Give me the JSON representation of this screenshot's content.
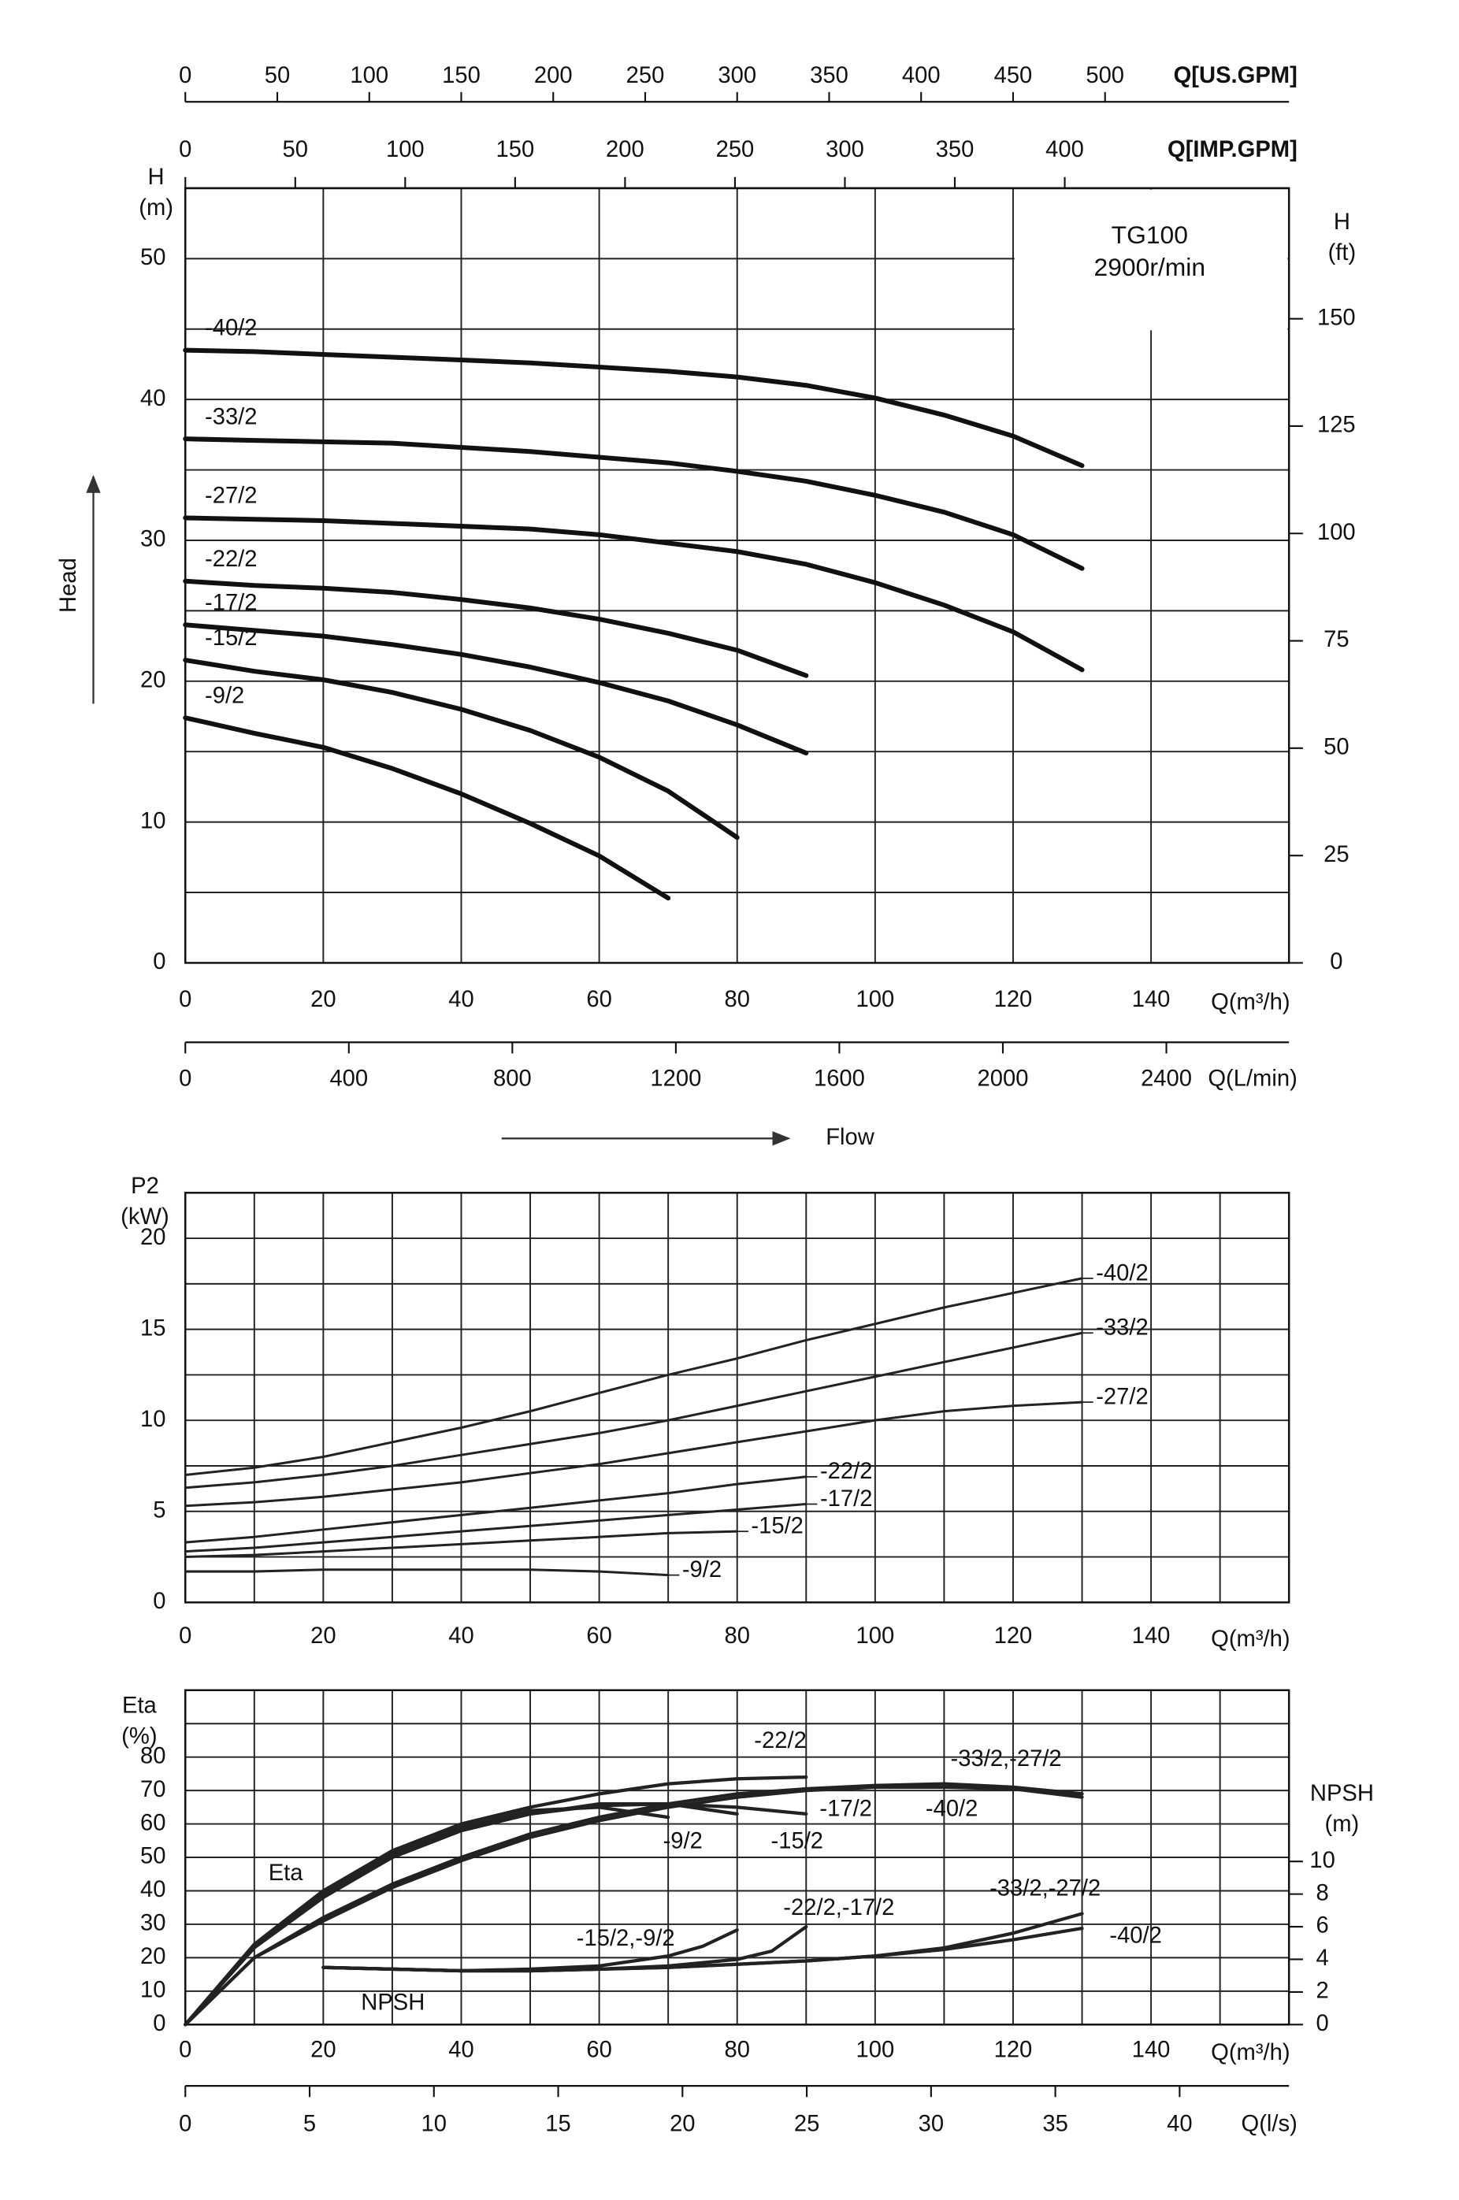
{
  "chart_data": [
    {
      "type": "line",
      "xlim": [
        0,
        160
      ],
      "xticks": [
        0,
        20,
        40,
        60,
        80,
        100,
        120,
        140
      ],
      "xlabel": "Q(m³/h)",
      "ylim": [
        0,
        55
      ],
      "yticks": [
        0,
        10,
        20,
        30,
        40,
        50
      ],
      "minor_yticks": [
        5,
        15,
        25,
        35,
        45
      ],
      "ylabel": [
        "H",
        "(m)"
      ],
      "y2lim": [
        0,
        180.4
      ],
      "y2ticks": [
        0,
        25,
        50,
        75,
        100,
        125,
        150
      ],
      "y2label": [
        "H",
        "(ft)"
      ],
      "grid": true,
      "line_width": 3.4,
      "color": "#111111",
      "top_axes": [
        {
          "label": "Q[US.GPM]",
          "xlim": [
            0,
            600
          ],
          "xticks": [
            0,
            50,
            100,
            150,
            200,
            250,
            300,
            350,
            400,
            450,
            500
          ]
        },
        {
          "label": "Q[IMP.GPM]",
          "xlim": [
            0,
            502
          ],
          "xticks": [
            0,
            50,
            100,
            150,
            200,
            250,
            300,
            350,
            400
          ]
        }
      ],
      "bottom_axes": [
        {
          "label": "Q(L/min)",
          "xlim": [
            0,
            2700
          ],
          "xticks": [
            0,
            400,
            800,
            1200,
            1600,
            2000,
            2400
          ]
        }
      ],
      "annotations": [
        "TG100",
        "2900r/min",
        "Head",
        "Flow"
      ],
      "series": [
        {
          "name": "-40/2",
          "x": [
            0,
            10,
            20,
            30,
            40,
            50,
            60,
            70,
            80,
            90,
            100,
            110,
            120,
            130
          ],
          "values": [
            43.5,
            43.4,
            43.2,
            43.0,
            42.8,
            42.6,
            42.3,
            42.0,
            41.6,
            41.0,
            40.1,
            38.9,
            37.4,
            35.3
          ]
        },
        {
          "name": "-33/2",
          "x": [
            0,
            10,
            20,
            30,
            40,
            50,
            60,
            70,
            80,
            90,
            100,
            110,
            120,
            130
          ],
          "values": [
            37.2,
            37.1,
            37.0,
            36.9,
            36.6,
            36.3,
            35.9,
            35.5,
            34.9,
            34.2,
            33.2,
            32.0,
            30.4,
            28.0
          ]
        },
        {
          "name": "-27/2",
          "x": [
            0,
            10,
            20,
            30,
            40,
            50,
            60,
            70,
            80,
            90,
            100,
            110,
            120,
            130
          ],
          "values": [
            31.6,
            31.5,
            31.4,
            31.2,
            31.0,
            30.8,
            30.4,
            29.8,
            29.2,
            28.3,
            27.0,
            25.4,
            23.5,
            20.8
          ]
        },
        {
          "name": "-22/2",
          "x": [
            0,
            10,
            20,
            30,
            40,
            50,
            60,
            70,
            80,
            90
          ],
          "values": [
            27.1,
            26.8,
            26.6,
            26.3,
            25.8,
            25.2,
            24.4,
            23.4,
            22.2,
            20.4
          ]
        },
        {
          "name": "-17/2",
          "x": [
            0,
            10,
            20,
            30,
            40,
            50,
            60,
            70,
            80,
            90
          ],
          "values": [
            24.0,
            23.6,
            23.2,
            22.6,
            21.9,
            21.0,
            19.9,
            18.6,
            16.9,
            14.9
          ]
        },
        {
          "name": "-15/2",
          "x": [
            0,
            10,
            20,
            30,
            40,
            50,
            60,
            70,
            80
          ],
          "values": [
            21.5,
            20.7,
            20.1,
            19.2,
            18.0,
            16.5,
            14.6,
            12.2,
            8.9
          ]
        },
        {
          "name": "-9/2",
          "x": [
            0,
            10,
            20,
            30,
            40,
            50,
            60,
            70
          ],
          "values": [
            17.4,
            16.3,
            15.3,
            13.8,
            12.0,
            9.9,
            7.6,
            4.6
          ]
        }
      ]
    },
    {
      "type": "line",
      "xlim": [
        0,
        160
      ],
      "xticks": [
        0,
        20,
        40,
        60,
        80,
        100,
        120,
        140
      ],
      "minor_xticks": [
        10,
        30,
        50,
        70,
        90,
        110,
        130,
        150
      ],
      "xlabel": "Q(m³/h)",
      "ylim": [
        0,
        22.5
      ],
      "yticks": [
        0,
        5,
        10,
        15,
        20
      ],
      "minor_yticks": [
        2.5,
        7.5,
        12.5,
        17.5
      ],
      "ylabel": [
        "P2",
        "(kW)"
      ],
      "grid": true,
      "line_width": 1.7,
      "color": "#222222",
      "series": [
        {
          "name": "-40/2",
          "x": [
            0,
            10,
            20,
            30,
            40,
            50,
            60,
            70,
            80,
            90,
            100,
            110,
            120,
            130
          ],
          "values": [
            7.0,
            7.4,
            8.0,
            8.8,
            9.6,
            10.5,
            11.5,
            12.5,
            13.4,
            14.4,
            15.3,
            16.2,
            17.0,
            17.8
          ]
        },
        {
          "name": "-33/2",
          "x": [
            0,
            10,
            20,
            30,
            40,
            50,
            60,
            70,
            80,
            90,
            100,
            110,
            120,
            130
          ],
          "values": [
            6.3,
            6.6,
            7.0,
            7.5,
            8.1,
            8.7,
            9.3,
            10.0,
            10.8,
            11.6,
            12.4,
            13.2,
            14.0,
            14.8
          ]
        },
        {
          "name": "-27/2",
          "x": [
            0,
            10,
            20,
            30,
            40,
            50,
            60,
            70,
            80,
            90,
            100,
            110,
            120,
            130
          ],
          "values": [
            5.3,
            5.5,
            5.8,
            6.2,
            6.6,
            7.1,
            7.6,
            8.2,
            8.8,
            9.4,
            10.0,
            10.5,
            10.8,
            11.0
          ]
        },
        {
          "name": "-22/2",
          "x": [
            0,
            10,
            20,
            30,
            40,
            50,
            60,
            70,
            80,
            90
          ],
          "values": [
            3.3,
            3.6,
            4.0,
            4.4,
            4.8,
            5.2,
            5.6,
            6.0,
            6.5,
            6.9
          ]
        },
        {
          "name": "-17/2",
          "x": [
            0,
            10,
            20,
            30,
            40,
            50,
            60,
            70,
            80,
            90
          ],
          "values": [
            2.8,
            3.0,
            3.3,
            3.6,
            3.9,
            4.2,
            4.5,
            4.8,
            5.1,
            5.4
          ]
        },
        {
          "name": "-15/2",
          "x": [
            0,
            10,
            20,
            30,
            40,
            50,
            60,
            70,
            80
          ],
          "values": [
            2.5,
            2.6,
            2.8,
            3.0,
            3.2,
            3.4,
            3.6,
            3.8,
            3.9
          ]
        },
        {
          "name": "-9/2",
          "x": [
            0,
            10,
            20,
            30,
            40,
            50,
            60,
            70
          ],
          "values": [
            1.7,
            1.7,
            1.8,
            1.8,
            1.8,
            1.8,
            1.7,
            1.5
          ]
        }
      ]
    },
    {
      "type": "line",
      "xlim": [
        0,
        160
      ],
      "xticks": [
        0,
        20,
        40,
        60,
        80,
        100,
        120,
        140
      ],
      "minor_xticks": [
        10,
        30,
        50,
        70,
        90,
        110,
        130,
        150
      ],
      "xlabel": "Q(m³/h)",
      "ylim": [
        0,
        100
      ],
      "yticks": [
        0,
        10,
        20,
        30,
        40,
        50,
        60,
        70,
        80
      ],
      "minor_yticks": [
        90
      ],
      "ylabel": [
        "Eta",
        "(%)"
      ],
      "y2lim": [
        0,
        20.5
      ],
      "y2ticks": [
        0,
        2,
        4,
        6,
        8,
        10
      ],
      "y2label": [
        "NPSH",
        "(m)"
      ],
      "grid": true,
      "line_width": 2.4,
      "color": "#222222",
      "bottom_axes": [
        {
          "label": "Q(l/s)",
          "xlim": [
            0,
            44.4
          ],
          "xticks": [
            0,
            5,
            10,
            15,
            20,
            25,
            30,
            35,
            40
          ]
        }
      ],
      "annotations": [
        "Eta",
        "NPSH"
      ],
      "series": [
        {
          "name": "-22/2",
          "x": [
            0,
            10,
            20,
            30,
            40,
            50,
            60,
            70,
            80,
            90
          ],
          "values": [
            0,
            24,
            40,
            52,
            60,
            65,
            69,
            72,
            73.5,
            74
          ]
        },
        {
          "name": "-33/2,-27/2",
          "x": [
            0,
            10,
            20,
            30,
            40,
            50,
            60,
            70,
            80,
            90,
            100,
            110,
            120,
            130
          ],
          "values": [
            0,
            20,
            32,
            42,
            50,
            57,
            62,
            66,
            69,
            70.5,
            71.5,
            72,
            71,
            69
          ]
        },
        {
          "name": "-40/2",
          "x": [
            0,
            10,
            20,
            30,
            40,
            50,
            60,
            70,
            80,
            90,
            100,
            110,
            120,
            130
          ],
          "values": [
            0,
            20,
            31,
            41,
            49,
            56,
            61,
            65,
            68,
            70,
            71,
            71,
            70.5,
            68
          ]
        },
        {
          "name": "-17/2",
          "x": [
            0,
            10,
            20,
            30,
            40,
            50,
            60,
            70,
            80,
            90
          ],
          "values": [
            0,
            23,
            39,
            50,
            58,
            63,
            65.5,
            66,
            65,
            63
          ]
        },
        {
          "name": "-15/2",
          "x": [
            0,
            10,
            20,
            30,
            40,
            50,
            60,
            70,
            80
          ],
          "values": [
            0,
            23,
            38,
            50,
            58,
            63,
            66,
            66,
            63
          ]
        },
        {
          "name": "-9/2",
          "x": [
            0,
            10,
            20,
            30,
            40,
            50,
            60,
            70
          ],
          "values": [
            0,
            24,
            40,
            51,
            59,
            64,
            65,
            62
          ]
        },
        {
          "name": "-33/2,-27/2",
          "axis": "y2",
          "x": [
            20,
            30,
            40,
            50,
            60,
            70,
            80,
            90,
            100,
            110,
            120,
            130
          ],
          "values": [
            3.5,
            3.4,
            3.3,
            3.3,
            3.4,
            3.5,
            3.7,
            3.9,
            4.2,
            4.7,
            5.6,
            6.8
          ]
        },
        {
          "name": "-40/2",
          "axis": "y2",
          "x": [
            20,
            30,
            40,
            50,
            60,
            70,
            80,
            90,
            100,
            110,
            120,
            130
          ],
          "values": [
            3.5,
            3.4,
            3.3,
            3.3,
            3.4,
            3.5,
            3.7,
            3.9,
            4.2,
            4.6,
            5.2,
            5.9
          ]
        },
        {
          "name": "-22/2,-17/2",
          "axis": "y2",
          "x": [
            20,
            30,
            40,
            50,
            60,
            70,
            80,
            85,
            90
          ],
          "values": [
            3.5,
            3.4,
            3.3,
            3.3,
            3.4,
            3.6,
            4.0,
            4.5,
            6.0
          ]
        },
        {
          "name": "-15/2,-9/2",
          "axis": "y2",
          "x": [
            20,
            30,
            40,
            50,
            60,
            70,
            75,
            80
          ],
          "values": [
            3.5,
            3.4,
            3.3,
            3.4,
            3.6,
            4.2,
            4.8,
            5.8
          ]
        }
      ]
    }
  ]
}
